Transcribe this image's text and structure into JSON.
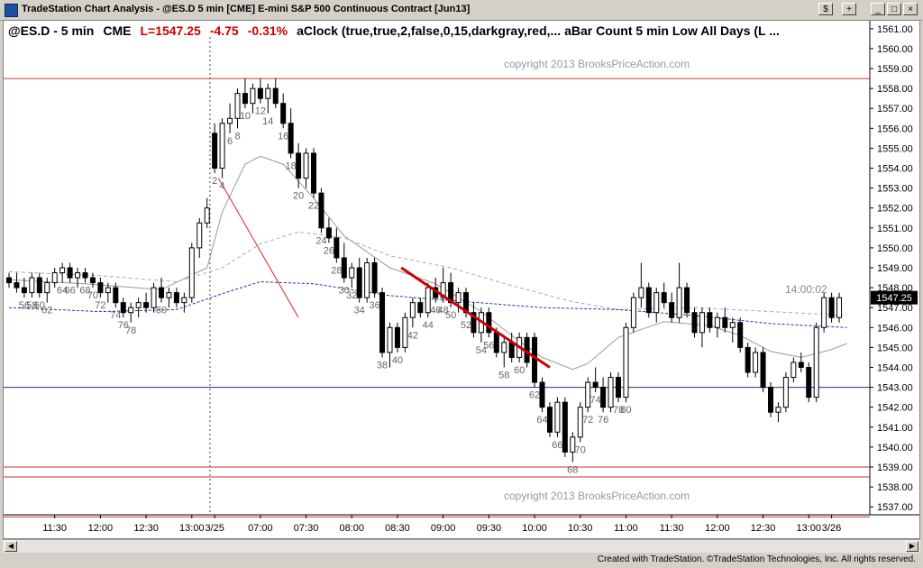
{
  "window": {
    "title": "TradeStation Chart Analysis - @ES.D 5 min [CME] E-mini S&P 500 Continuous Contract [Jun13]",
    "buttons": {
      "dollar": "$",
      "plus": "+",
      "minimize": "_",
      "maximize": "□",
      "close": "×"
    }
  },
  "header": {
    "symbol": "@ES.D - 5 min",
    "exchange": "CME",
    "last": "L=1547.25",
    "change": "-4.75",
    "pct": "-0.31%",
    "studies": "aClock (true,true,2,false,0,15,darkgray,red,...  aBar Count 5 min Low All Days (L ...",
    "colors": {
      "last": "#cc0000",
      "text": "#000000"
    }
  },
  "watermarks": [
    "copyright 2013 BrooksPriceAction.com",
    "copyright 2013 BrooksPriceAction.com"
  ],
  "time_label": "14:00:02",
  "price_box": "1547.25",
  "footer": "Created with TradeStation. ©TradeStation Technologies, Inc. All rights reserved.",
  "chart_data": {
    "type": "candlestick",
    "ylim": [
      1536.6,
      1561.4
    ],
    "y_ticks": [
      1537,
      1538,
      1539,
      1540,
      1541,
      1542,
      1543,
      1544,
      1545,
      1546,
      1547,
      1548,
      1549,
      1550,
      1551,
      1552,
      1553,
      1554,
      1555,
      1556,
      1557,
      1558,
      1559,
      1560,
      1561
    ],
    "x_ticks": [
      {
        "label": "11:30",
        "bar": 6
      },
      {
        "label": "12:00",
        "bar": 12
      },
      {
        "label": "12:30",
        "bar": 18
      },
      {
        "label": "13:00",
        "bar": 24
      },
      {
        "label": "3/25",
        "bar": 27
      },
      {
        "label": "07:00",
        "bar": 33
      },
      {
        "label": "07:30",
        "bar": 39
      },
      {
        "label": "08:00",
        "bar": 45
      },
      {
        "label": "08:30",
        "bar": 51
      },
      {
        "label": "09:00",
        "bar": 57
      },
      {
        "label": "09:30",
        "bar": 63
      },
      {
        "label": "10:00",
        "bar": 69
      },
      {
        "label": "10:30",
        "bar": 75
      },
      {
        "label": "11:00",
        "bar": 81
      },
      {
        "label": "11:30",
        "bar": 87
      },
      {
        "label": "12:00",
        "bar": 93
      },
      {
        "label": "12:30",
        "bar": 99
      },
      {
        "label": "13:00",
        "bar": 105
      },
      {
        "label": "3/26",
        "bar": 108
      }
    ],
    "day_divider_bar": 27,
    "bars": [
      [
        1548.5,
        1548.75,
        1548.0,
        1548.25
      ],
      [
        1548.25,
        1548.75,
        1547.75,
        1548.0
      ],
      [
        1548.0,
        1548.5,
        1547.5,
        1547.75
      ],
      [
        1547.75,
        1548.75,
        1547.5,
        1548.5
      ],
      [
        1548.5,
        1548.75,
        1547.5,
        1547.75
      ],
      [
        1547.75,
        1548.5,
        1547.25,
        1548.25
      ],
      [
        1548.25,
        1549.0,
        1548.0,
        1548.75
      ],
      [
        1548.75,
        1549.25,
        1548.25,
        1549.0
      ],
      [
        1549.0,
        1549.25,
        1548.25,
        1548.5
      ],
      [
        1548.5,
        1549.0,
        1548.0,
        1548.75
      ],
      [
        1548.75,
        1549.0,
        1548.25,
        1548.5
      ],
      [
        1548.5,
        1548.75,
        1548.0,
        1548.25
      ],
      [
        1548.25,
        1548.5,
        1547.5,
        1547.75
      ],
      [
        1547.75,
        1548.25,
        1547.25,
        1548.0
      ],
      [
        1548.0,
        1548.25,
        1547.0,
        1547.25
      ],
      [
        1547.25,
        1547.5,
        1546.5,
        1546.75
      ],
      [
        1546.75,
        1547.25,
        1546.25,
        1547.0
      ],
      [
        1547.0,
        1547.5,
        1546.5,
        1547.25
      ],
      [
        1547.25,
        1547.75,
        1546.75,
        1547.0
      ],
      [
        1547.0,
        1548.25,
        1546.75,
        1548.0
      ],
      [
        1548.0,
        1548.5,
        1547.25,
        1547.5
      ],
      [
        1547.5,
        1548.0,
        1547.0,
        1547.75
      ],
      [
        1547.75,
        1548.0,
        1547.0,
        1547.25
      ],
      [
        1547.25,
        1547.75,
        1546.75,
        1547.5
      ],
      [
        1547.5,
        1550.25,
        1547.25,
        1550.0
      ],
      [
        1550.0,
        1551.5,
        1549.5,
        1551.25
      ],
      [
        1551.25,
        1552.5,
        1551.0,
        1552.0
      ],
      [
        1555.75,
        1556.25,
        1553.75,
        1554.0
      ],
      [
        1554.0,
        1556.5,
        1553.5,
        1556.25
      ],
      [
        1556.25,
        1557.25,
        1555.75,
        1556.5
      ],
      [
        1556.5,
        1558.0,
        1556.0,
        1557.75
      ],
      [
        1557.75,
        1558.5,
        1557.0,
        1557.25
      ],
      [
        1557.25,
        1558.25,
        1556.75,
        1558.0
      ],
      [
        1558.0,
        1558.5,
        1557.25,
        1557.5
      ],
      [
        1557.5,
        1558.25,
        1556.75,
        1558.0
      ],
      [
        1558.0,
        1558.5,
        1557.0,
        1557.25
      ],
      [
        1557.25,
        1557.75,
        1556.0,
        1556.25
      ],
      [
        1556.25,
        1557.0,
        1554.5,
        1554.75
      ],
      [
        1554.75,
        1555.25,
        1553.0,
        1553.5
      ],
      [
        1553.5,
        1555.0,
        1553.0,
        1554.75
      ],
      [
        1554.75,
        1555.0,
        1552.5,
        1552.75
      ],
      [
        1552.75,
        1553.0,
        1550.75,
        1551.0
      ],
      [
        1551.0,
        1551.5,
        1550.25,
        1550.5
      ],
      [
        1550.5,
        1551.0,
        1549.25,
        1549.5
      ],
      [
        1549.5,
        1550.25,
        1548.25,
        1548.5
      ],
      [
        1548.5,
        1549.25,
        1548.0,
        1549.0
      ],
      [
        1549.0,
        1549.5,
        1547.25,
        1547.5
      ],
      [
        1547.5,
        1549.5,
        1547.25,
        1549.25
      ],
      [
        1549.25,
        1549.5,
        1547.5,
        1547.75
      ],
      [
        1547.75,
        1548.0,
        1544.5,
        1544.75
      ],
      [
        1544.75,
        1546.25,
        1544.0,
        1546.0
      ],
      [
        1546.0,
        1546.25,
        1544.75,
        1545.0
      ],
      [
        1545.0,
        1546.75,
        1544.75,
        1546.5
      ],
      [
        1546.5,
        1547.5,
        1546.0,
        1547.25
      ],
      [
        1547.25,
        1547.5,
        1546.5,
        1546.75
      ],
      [
        1546.75,
        1548.25,
        1546.5,
        1548.0
      ],
      [
        1548.0,
        1548.5,
        1547.25,
        1547.5
      ],
      [
        1547.5,
        1549.0,
        1547.25,
        1548.25
      ],
      [
        1548.25,
        1548.75,
        1547.0,
        1547.25
      ],
      [
        1547.25,
        1548.0,
        1546.75,
        1547.75
      ],
      [
        1547.75,
        1548.0,
        1546.5,
        1546.75
      ],
      [
        1546.75,
        1547.25,
        1545.5,
        1545.75
      ],
      [
        1545.75,
        1547.0,
        1545.25,
        1546.75
      ],
      [
        1546.75,
        1547.0,
        1545.5,
        1545.75
      ],
      [
        1545.75,
        1546.0,
        1544.5,
        1544.75
      ],
      [
        1544.75,
        1545.5,
        1544.0,
        1545.25
      ],
      [
        1545.25,
        1545.75,
        1544.25,
        1544.5
      ],
      [
        1544.5,
        1545.75,
        1544.25,
        1545.5
      ],
      [
        1545.5,
        1545.75,
        1544.0,
        1544.25
      ],
      [
        1545.5,
        1545.75,
        1543.0,
        1543.25
      ],
      [
        1543.25,
        1543.5,
        1541.75,
        1542.0
      ],
      [
        1542.0,
        1542.25,
        1540.5,
        1540.75
      ],
      [
        1540.75,
        1542.5,
        1540.5,
        1542.25
      ],
      [
        1542.25,
        1542.5,
        1539.5,
        1539.75
      ],
      [
        1539.75,
        1540.75,
        1539.25,
        1540.5
      ],
      [
        1540.5,
        1542.25,
        1540.25,
        1542.0
      ],
      [
        1542.0,
        1543.5,
        1541.75,
        1543.25
      ],
      [
        1543.25,
        1544.0,
        1542.75,
        1543.0
      ],
      [
        1543.0,
        1543.5,
        1541.75,
        1542.0
      ],
      [
        1542.0,
        1543.75,
        1541.75,
        1543.5
      ],
      [
        1543.5,
        1543.75,
        1542.25,
        1542.5
      ],
      [
        1542.5,
        1546.25,
        1542.25,
        1546.0
      ],
      [
        1546.0,
        1547.75,
        1545.75,
        1547.5
      ],
      [
        1547.5,
        1549.25,
        1547.0,
        1548.0
      ],
      [
        1548.0,
        1548.25,
        1546.5,
        1546.75
      ],
      [
        1546.75,
        1548.0,
        1546.25,
        1547.75
      ],
      [
        1547.75,
        1548.25,
        1547.0,
        1547.25
      ],
      [
        1547.25,
        1547.75,
        1546.25,
        1546.5
      ],
      [
        1546.5,
        1549.25,
        1546.25,
        1548.0
      ],
      [
        1548.0,
        1548.25,
        1546.5,
        1546.75
      ],
      [
        1546.75,
        1547.0,
        1545.5,
        1545.75
      ],
      [
        1545.75,
        1547.0,
        1545.0,
        1546.75
      ],
      [
        1546.75,
        1547.0,
        1545.75,
        1546.0
      ],
      [
        1546.0,
        1546.75,
        1545.5,
        1546.5
      ],
      [
        1546.5,
        1547.0,
        1545.75,
        1546.0
      ],
      [
        1546.0,
        1546.5,
        1545.25,
        1546.25
      ],
      [
        1546.25,
        1546.5,
        1544.75,
        1545.0
      ],
      [
        1545.0,
        1545.25,
        1543.5,
        1543.75
      ],
      [
        1543.75,
        1545.0,
        1543.5,
        1544.75
      ],
      [
        1544.75,
        1545.0,
        1542.75,
        1543.0
      ],
      [
        1543.0,
        1543.25,
        1541.5,
        1541.75
      ],
      [
        1541.75,
        1542.25,
        1541.25,
        1542.0
      ],
      [
        1542.0,
        1543.75,
        1541.75,
        1543.5
      ],
      [
        1543.5,
        1544.5,
        1543.25,
        1544.25
      ],
      [
        1544.25,
        1544.75,
        1543.75,
        1544.0
      ],
      [
        1544.0,
        1544.25,
        1542.25,
        1542.5
      ],
      [
        1542.5,
        1546.25,
        1542.25,
        1546.0
      ],
      [
        1546.0,
        1547.75,
        1545.75,
        1547.5
      ],
      [
        1547.5,
        1547.75,
        1546.25,
        1546.5
      ],
      [
        1546.5,
        1547.75,
        1546.25,
        1547.5
      ]
    ],
    "bar_labels": [
      {
        "bar": 2,
        "text": "56"
      },
      {
        "bar": 3,
        "text": "58"
      },
      {
        "bar": 4,
        "text": "60"
      },
      {
        "bar": 5,
        "text": "62"
      },
      {
        "bar": 7,
        "text": "64"
      },
      {
        "bar": 8,
        "text": "66"
      },
      {
        "bar": 10,
        "text": "68"
      },
      {
        "bar": 11,
        "text": "70"
      },
      {
        "bar": 12,
        "text": "72"
      },
      {
        "bar": 14,
        "text": "74"
      },
      {
        "bar": 15,
        "text": "76"
      },
      {
        "bar": 16,
        "text": "78"
      },
      {
        "bar": 20,
        "text": "80"
      },
      {
        "bar": 27,
        "text": "2"
      },
      {
        "bar": 28,
        "text": "4"
      },
      {
        "bar": 29,
        "text": "6"
      },
      {
        "bar": 30,
        "text": "8"
      },
      {
        "bar": 31,
        "text": "10"
      },
      {
        "bar": 33,
        "text": "12"
      },
      {
        "bar": 34,
        "text": "14"
      },
      {
        "bar": 36,
        "text": "16"
      },
      {
        "bar": 37,
        "text": "18"
      },
      {
        "bar": 38,
        "text": "20"
      },
      {
        "bar": 40,
        "text": "22"
      },
      {
        "bar": 41,
        "text": "24"
      },
      {
        "bar": 42,
        "text": "26"
      },
      {
        "bar": 43,
        "text": "28"
      },
      {
        "bar": 44,
        "text": "30"
      },
      {
        "bar": 45,
        "text": "32"
      },
      {
        "bar": 46,
        "text": "34"
      },
      {
        "bar": 48,
        "text": "36"
      },
      {
        "bar": 49,
        "text": "38"
      },
      {
        "bar": 51,
        "text": "40"
      },
      {
        "bar": 53,
        "text": "42"
      },
      {
        "bar": 55,
        "text": "44"
      },
      {
        "bar": 56,
        "text": "46"
      },
      {
        "bar": 57,
        "text": "48"
      },
      {
        "bar": 58,
        "text": "50"
      },
      {
        "bar": 60,
        "text": "52"
      },
      {
        "bar": 62,
        "text": "54"
      },
      {
        "bar": 63,
        "text": "56"
      },
      {
        "bar": 65,
        "text": "58"
      },
      {
        "bar": 67,
        "text": "60"
      },
      {
        "bar": 69,
        "text": "62"
      },
      {
        "bar": 70,
        "text": "64"
      },
      {
        "bar": 72,
        "text": "66"
      },
      {
        "bar": 74,
        "text": "68"
      },
      {
        "bar": 75,
        "text": "70"
      },
      {
        "bar": 76,
        "text": "72"
      },
      {
        "bar": 77,
        "text": "74"
      },
      {
        "bar": 78,
        "text": "76"
      },
      {
        "bar": 80,
        "text": "78"
      },
      {
        "bar": 81,
        "text": "80"
      }
    ],
    "hlines": [
      {
        "y": 1558.5,
        "color": "#cc3333"
      },
      {
        "y": 1543.0,
        "color": "#2a2a99"
      },
      {
        "y": 1539.0,
        "color": "#cc3333"
      },
      {
        "y": 1538.5,
        "color": "#cc3333"
      },
      {
        "y": 1536.5,
        "color": "#cc3333"
      }
    ],
    "trendlines": [
      {
        "from": {
          "bar": 27.5,
          "y": 1553.5
        },
        "to": {
          "bar": 38,
          "y": 1546.5
        },
        "color": "#dd2222",
        "width": 1
      },
      {
        "from": {
          "bar": 51.5,
          "y": 1549.0
        },
        "to": {
          "bar": 71,
          "y": 1544.0
        },
        "color": "#cc0000",
        "width": 3
      }
    ],
    "ema_gray": [
      [
        0,
        1548.4
      ],
      [
        10,
        1548.2
      ],
      [
        20,
        1547.9
      ],
      [
        26,
        1549.0
      ],
      [
        28,
        1551.8
      ],
      [
        31,
        1554.2
      ],
      [
        33,
        1554.6
      ],
      [
        36,
        1554.2
      ],
      [
        40,
        1552.5
      ],
      [
        44,
        1550.6
      ],
      [
        50,
        1549.0
      ],
      [
        56,
        1548.2
      ],
      [
        62,
        1546.8
      ],
      [
        66,
        1545.6
      ],
      [
        70,
        1544.5
      ],
      [
        74,
        1543.9
      ],
      [
        76,
        1544.2
      ],
      [
        80,
        1545.5
      ],
      [
        86,
        1546.3
      ],
      [
        92,
        1546.1
      ],
      [
        96,
        1545.6
      ],
      [
        100,
        1544.8
      ],
      [
        104,
        1544.5
      ],
      [
        108,
        1544.9
      ],
      [
        110,
        1545.2
      ]
    ],
    "dash_gray": [
      [
        0,
        1548.8
      ],
      [
        12,
        1548.6
      ],
      [
        22,
        1548.3
      ],
      [
        28,
        1549.0
      ],
      [
        33,
        1550.2
      ],
      [
        38,
        1550.8
      ],
      [
        44,
        1550.5
      ],
      [
        50,
        1549.6
      ],
      [
        58,
        1549.0
      ],
      [
        66,
        1548.1
      ],
      [
        74,
        1547.3
      ],
      [
        80,
        1546.9
      ],
      [
        90,
        1547.0
      ],
      [
        100,
        1546.8
      ],
      [
        110,
        1546.6
      ]
    ],
    "dash_blue": [
      [
        0,
        1547.0
      ],
      [
        12,
        1546.8
      ],
      [
        22,
        1546.9
      ],
      [
        28,
        1547.7
      ],
      [
        33,
        1548.3
      ],
      [
        40,
        1548.2
      ],
      [
        50,
        1547.6
      ],
      [
        60,
        1547.3
      ],
      [
        70,
        1547.0
      ],
      [
        80,
        1546.9
      ],
      [
        90,
        1546.6
      ],
      [
        100,
        1546.2
      ],
      [
        110,
        1546.0
      ]
    ]
  }
}
